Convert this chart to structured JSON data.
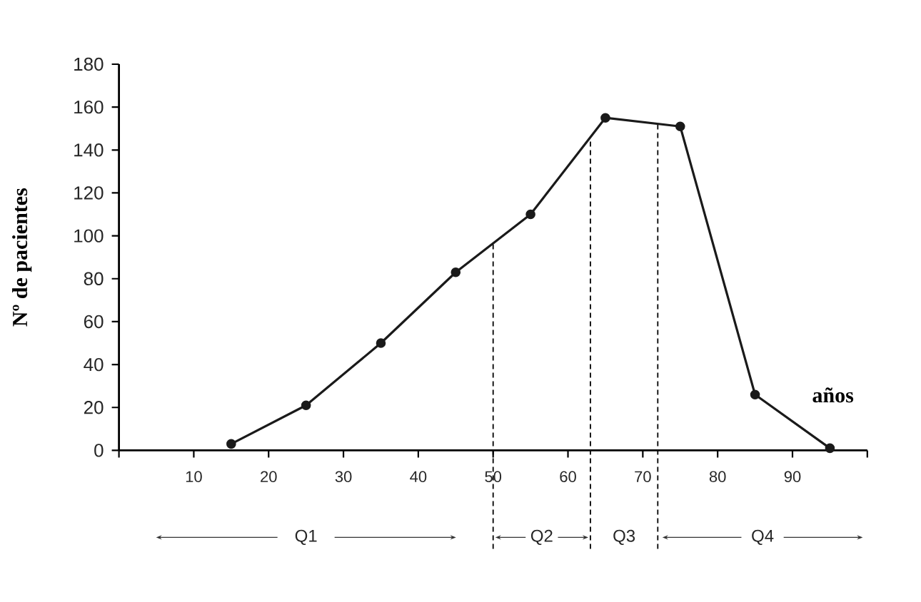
{
  "chart_data": {
    "type": "line",
    "xlabel": "años",
    "ylabel": "Nº de pacientes",
    "x": [
      15,
      25,
      35,
      45,
      55,
      65,
      75,
      85,
      95
    ],
    "values": [
      3,
      21,
      50,
      83,
      110,
      155,
      151,
      26,
      1
    ],
    "color": "#1a1a1a",
    "marker": "circle",
    "line_style": "solid",
    "xlim": [
      0,
      100
    ],
    "ylim": [
      0,
      180
    ],
    "xticks": [
      {
        "value": 0,
        "label": null
      },
      10,
      20,
      30,
      40,
      50,
      60,
      70,
      80,
      90,
      {
        "value": 100,
        "label": null
      }
    ],
    "yticks": [
      0,
      20,
      40,
      60,
      80,
      100,
      120,
      140,
      160,
      180
    ],
    "ref_lines": [
      {
        "axis": "x",
        "value": 50,
        "line_style": "dashed"
      },
      {
        "axis": "x",
        "value": 63,
        "line_style": "dashed"
      },
      {
        "axis": "x",
        "value": 72,
        "line_style": "dashed"
      }
    ],
    "annotations": [
      "Q1",
      "Q2",
      "Q3",
      "Q4"
    ]
  }
}
